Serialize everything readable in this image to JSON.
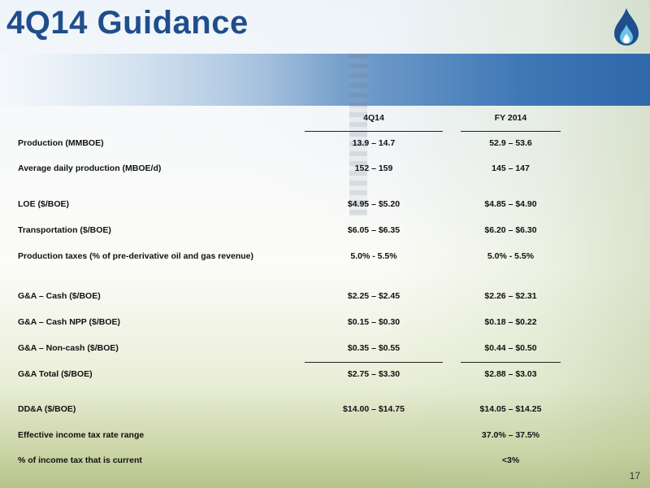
{
  "slide": {
    "title": "4Q14 Guidance",
    "page_number": "17"
  },
  "table": {
    "columns": [
      "4Q14",
      "FY 2014"
    ],
    "rows": [
      {
        "label": "Production (MMBOE)",
        "q4": "13.9 – 14.7",
        "fy": "52.9 – 53.6"
      },
      {
        "label": "Average daily production (MBOE/d)",
        "q4": "152 – 159",
        "fy": "145 – 147"
      },
      {
        "label": "LOE ($/BOE)",
        "q4": "$4.95 – $5.20",
        "fy": "$4.85 – $4.90"
      },
      {
        "label": "Transportation ($/BOE)",
        "q4": "$6.05 – $6.35",
        "fy": "$6.20 – $6.30"
      },
      {
        "label": "Production taxes (% of pre-derivative oil and gas revenue)",
        "q4": "5.0% - 5.5%",
        "fy": "5.0% - 5.5%"
      },
      {
        "label": "G&A – Cash ($/BOE)",
        "q4": "$2.25 – $2.45",
        "fy": "$2.26 – $2.31"
      },
      {
        "label": "G&A – Cash NPP ($/BOE)",
        "q4": "$0.15 – $0.30",
        "fy": "$0.18 – $0.22"
      },
      {
        "label": "G&A – Non-cash ($/BOE)",
        "q4": "$0.35 – $0.55",
        "fy": "$0.44 – $0.50"
      },
      {
        "label": "G&A Total ($/BOE)",
        "q4": "$2.75 – $3.30",
        "fy": "$2.88 – $3.03"
      },
      {
        "label": "DD&A ($/BOE)",
        "q4": "$14.00 – $14.75",
        "fy": "$14.05 – $14.25"
      },
      {
        "label": "Effective income tax rate range",
        "q4": "",
        "fy": "37.0% – 37.5%"
      },
      {
        "label": "% of income tax that is current",
        "q4": "",
        "fy": "<3%"
      }
    ]
  },
  "colors": {
    "title": "#1f4e8c",
    "band": "#2f68aa",
    "logo": "#1f4e8c",
    "flame": "#6ec1ea"
  },
  "icons": {
    "logo": "flame-logo-icon"
  }
}
